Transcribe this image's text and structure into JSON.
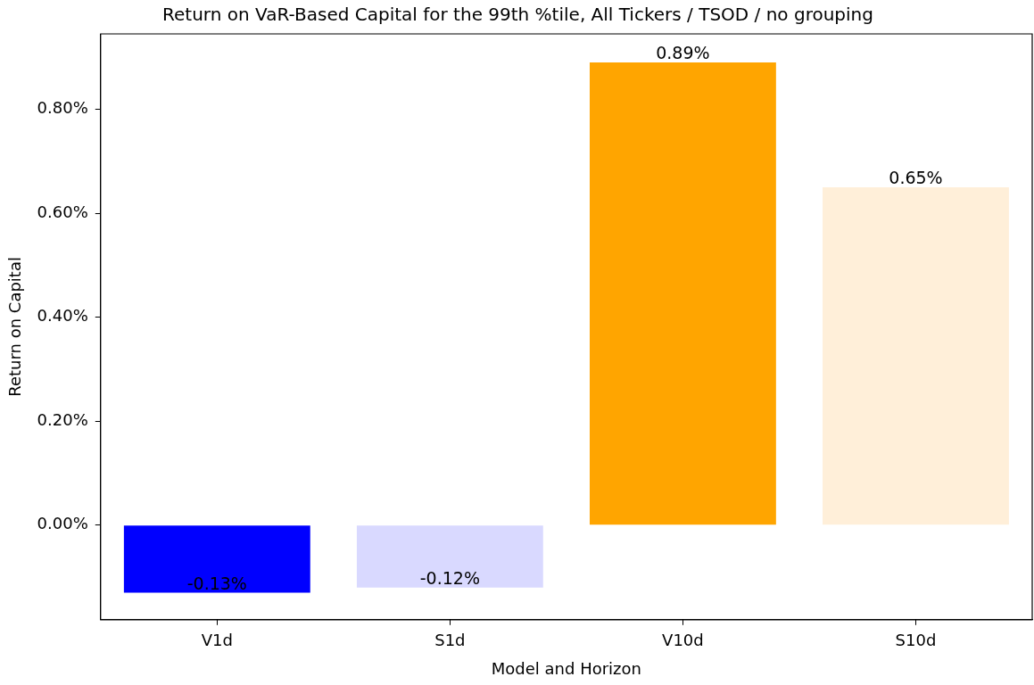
{
  "chart_data": {
    "type": "bar",
    "title": "Return on VaR-Based Capital for the 99th %tile, All Tickers / TSOD / no grouping",
    "xlabel": "Model and Horizon",
    "ylabel": "Return on Capital",
    "categories": [
      "V1d",
      "S1d",
      "V10d",
      "S10d"
    ],
    "values": [
      -0.13,
      -0.12,
      0.89,
      0.65
    ],
    "colors": [
      "#0000ff",
      "#d9d9ff",
      "#ffa500",
      "#ffefd9"
    ],
    "value_labels": [
      "-0.13%",
      "-0.12%",
      "0.89%",
      "0.65%"
    ],
    "ylim": [
      -0.182,
      0.945
    ],
    "yticks": [
      {
        "value": 0,
        "label": "0.00%"
      },
      {
        "value": 0.2,
        "label": "0.20%"
      },
      {
        "value": 0.4,
        "label": "0.40%"
      },
      {
        "value": 0.6,
        "label": "0.60%"
      },
      {
        "value": 0.8,
        "label": "0.80%"
      }
    ],
    "grid": false,
    "legend": false
  }
}
